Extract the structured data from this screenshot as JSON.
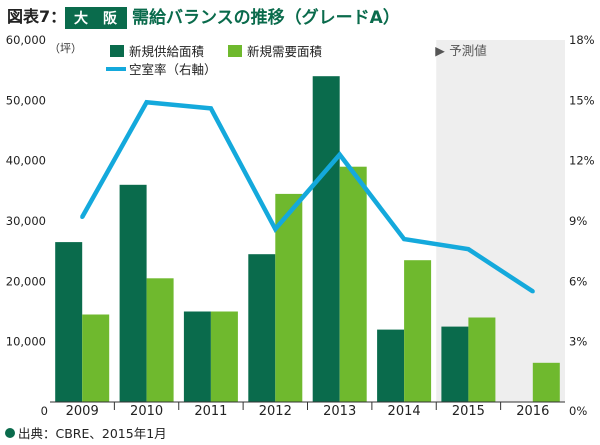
{
  "title": {
    "prefix": "図表7：",
    "badge_chars": [
      "大",
      "阪"
    ],
    "text": "需給バランスの推移（グレードA）"
  },
  "source": "出典：CBRE、2015年1月",
  "forecast_label": "予測値",
  "left_axis_unit": "（坪）",
  "colors": {
    "supply": "#0a6b4c",
    "demand": "#6fb92e",
    "vacancy": "#14a9dc",
    "forecast_bg": "#eeeeee",
    "title_green": "#0a6b4c"
  },
  "chart_data": {
    "type": "bar",
    "categories": [
      "2009",
      "2010",
      "2011",
      "2012",
      "2013",
      "2014",
      "2015",
      "2016"
    ],
    "series": [
      {
        "name": "新規供給面積",
        "type": "bar",
        "axis": "left",
        "values": [
          26500,
          36000,
          15000,
          24500,
          54000,
          12000,
          12500,
          null
        ]
      },
      {
        "name": "新規需要面積",
        "type": "bar",
        "axis": "left",
        "values": [
          14500,
          20500,
          15000,
          34500,
          39000,
          23500,
          14000,
          6500
        ]
      },
      {
        "name": "空室率（右軸）",
        "type": "line",
        "axis": "right",
        "values": [
          9.2,
          14.9,
          14.6,
          8.6,
          12.3,
          8.1,
          7.6,
          5.5
        ]
      }
    ],
    "y_left": {
      "min": 0,
      "max": 60000,
      "ticks": [
        "0",
        "10,000",
        "20,000",
        "30,000",
        "40,000",
        "50,000",
        "60,000"
      ]
    },
    "y_right": {
      "min": 0,
      "max": 18,
      "ticks": [
        "0%",
        "3%",
        "6%",
        "9%",
        "12%",
        "15%",
        "18%"
      ]
    },
    "forecast_start_index": 6,
    "grid": false,
    "legend_position": "top-left"
  }
}
